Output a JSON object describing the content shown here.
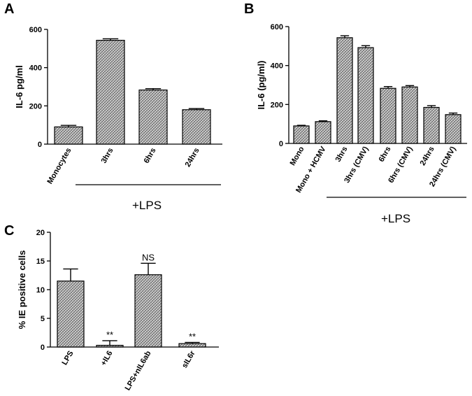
{
  "chart_data": [
    {
      "panel": "A",
      "type": "bar",
      "ylabel": "IL-6 pg/ml",
      "ylim": [
        0,
        600
      ],
      "yticks": [
        0,
        200,
        400,
        600
      ],
      "categories": [
        "Monocytes",
        "3hrs",
        "6hrs",
        "24hrs"
      ],
      "values": [
        90,
        543,
        283,
        180
      ],
      "errors": [
        8,
        8,
        7,
        6
      ],
      "group_label": "+LPS",
      "grid": false
    },
    {
      "panel": "B",
      "type": "bar",
      "ylabel": "IL-6 (pg/ml)",
      "ylim": [
        0,
        600
      ],
      "yticks": [
        0,
        200,
        400,
        600
      ],
      "categories": [
        "Mono",
        "Mono + HCMV",
        "3hrs",
        "3hrs (CMV)",
        "6hrs",
        "6hrs (CMV)",
        "24hrs",
        "24hrs (CMV)"
      ],
      "values": [
        90,
        112,
        543,
        492,
        283,
        290,
        185,
        148
      ],
      "errors": [
        3,
        4,
        10,
        10,
        9,
        7,
        9,
        8
      ],
      "group_label": "+LPS",
      "grid": false
    },
    {
      "panel": "C",
      "type": "bar",
      "ylabel": "% IE positive cells",
      "ylim": [
        0,
        20
      ],
      "yticks": [
        0,
        5,
        10,
        15,
        20
      ],
      "categories": [
        "LPS",
        "+IL6",
        "LPS+nIL6ab",
        "sIL6r"
      ],
      "values": [
        11.5,
        0.3,
        12.6,
        0.6
      ],
      "errors": [
        2.1,
        0.8,
        2.0,
        0.2
      ],
      "annotations": [
        "",
        "**",
        "NS",
        "**"
      ],
      "grid": false
    }
  ]
}
